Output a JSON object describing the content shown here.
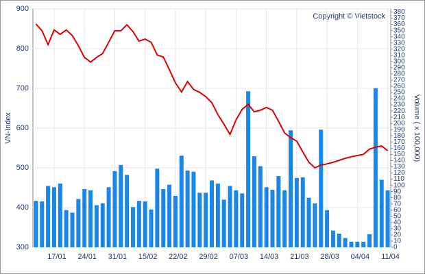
{
  "chart_data": {
    "type": "bar_line",
    "annotation": "Copyright © Vietstock",
    "y_label": "VN-Index",
    "y2_label": "Volume ( x 100,000)",
    "categories": [
      null,
      null,
      null,
      "17/01",
      null,
      null,
      null,
      null,
      "24/01",
      null,
      null,
      null,
      null,
      "31/01",
      null,
      null,
      null,
      null,
      "15/02",
      null,
      null,
      null,
      null,
      "22/02",
      null,
      null,
      null,
      null,
      "29/02",
      null,
      null,
      null,
      null,
      "07/03",
      null,
      null,
      null,
      null,
      "14/03",
      null,
      null,
      null,
      null,
      "21/03",
      null,
      null,
      null,
      null,
      "28/03",
      null,
      null,
      null,
      null,
      "04/04",
      null,
      null,
      null,
      null,
      "11/04"
    ],
    "series": [
      {
        "name": "Volume",
        "type": "bar",
        "axis": "y2",
        "color": "#1a86ea",
        "values": [
          75,
          74,
          99,
          97,
          103,
          60,
          56,
          78,
          94,
          92,
          68,
          71,
          97,
          123,
          133,
          117,
          65,
          75,
          74,
          61,
          127,
          94,
          101,
          83,
          148,
          124,
          122,
          88,
          88,
          108,
          103,
          77,
          99,
          92,
          87,
          252,
          147,
          131,
          97,
          93,
          115,
          92,
          189,
          112,
          113,
          80,
          71,
          190,
          60,
          27,
          22,
          15,
          9,
          9,
          9,
          21,
          257,
          109,
          92
        ]
      },
      {
        "name": "VN-Index",
        "type": "line",
        "color": "#dd0000",
        "values": [
          862,
          845,
          810,
          847,
          836,
          847,
          833,
          807,
          778,
          766,
          778,
          788,
          816,
          845,
          845,
          860,
          843,
          819,
          824,
          816,
          784,
          779,
          747,
          714,
          691,
          717,
          697,
          690,
          679,
          664,
          634,
          610,
          584,
          621,
          647,
          660,
          641,
          645,
          652,
          645,
          617,
          588,
          576,
          567,
          540,
          514,
          500,
          507,
          510,
          514,
          519,
          524,
          528,
          531,
          534,
          547,
          552,
          555,
          543
        ]
      }
    ],
    "ylim": [
      300,
      900
    ],
    "yticks": [
      300,
      400,
      500,
      600,
      700,
      800,
      900
    ],
    "y2lim": [
      0,
      385
    ],
    "y2ticks": [
      0,
      10,
      20,
      30,
      40,
      50,
      60,
      70,
      80,
      90,
      100,
      110,
      120,
      130,
      140,
      150,
      160,
      170,
      180,
      190,
      200,
      210,
      220,
      230,
      240,
      250,
      260,
      270,
      280,
      290,
      300,
      310,
      320,
      330,
      340,
      350,
      360,
      370,
      380
    ],
    "grid": true
  }
}
